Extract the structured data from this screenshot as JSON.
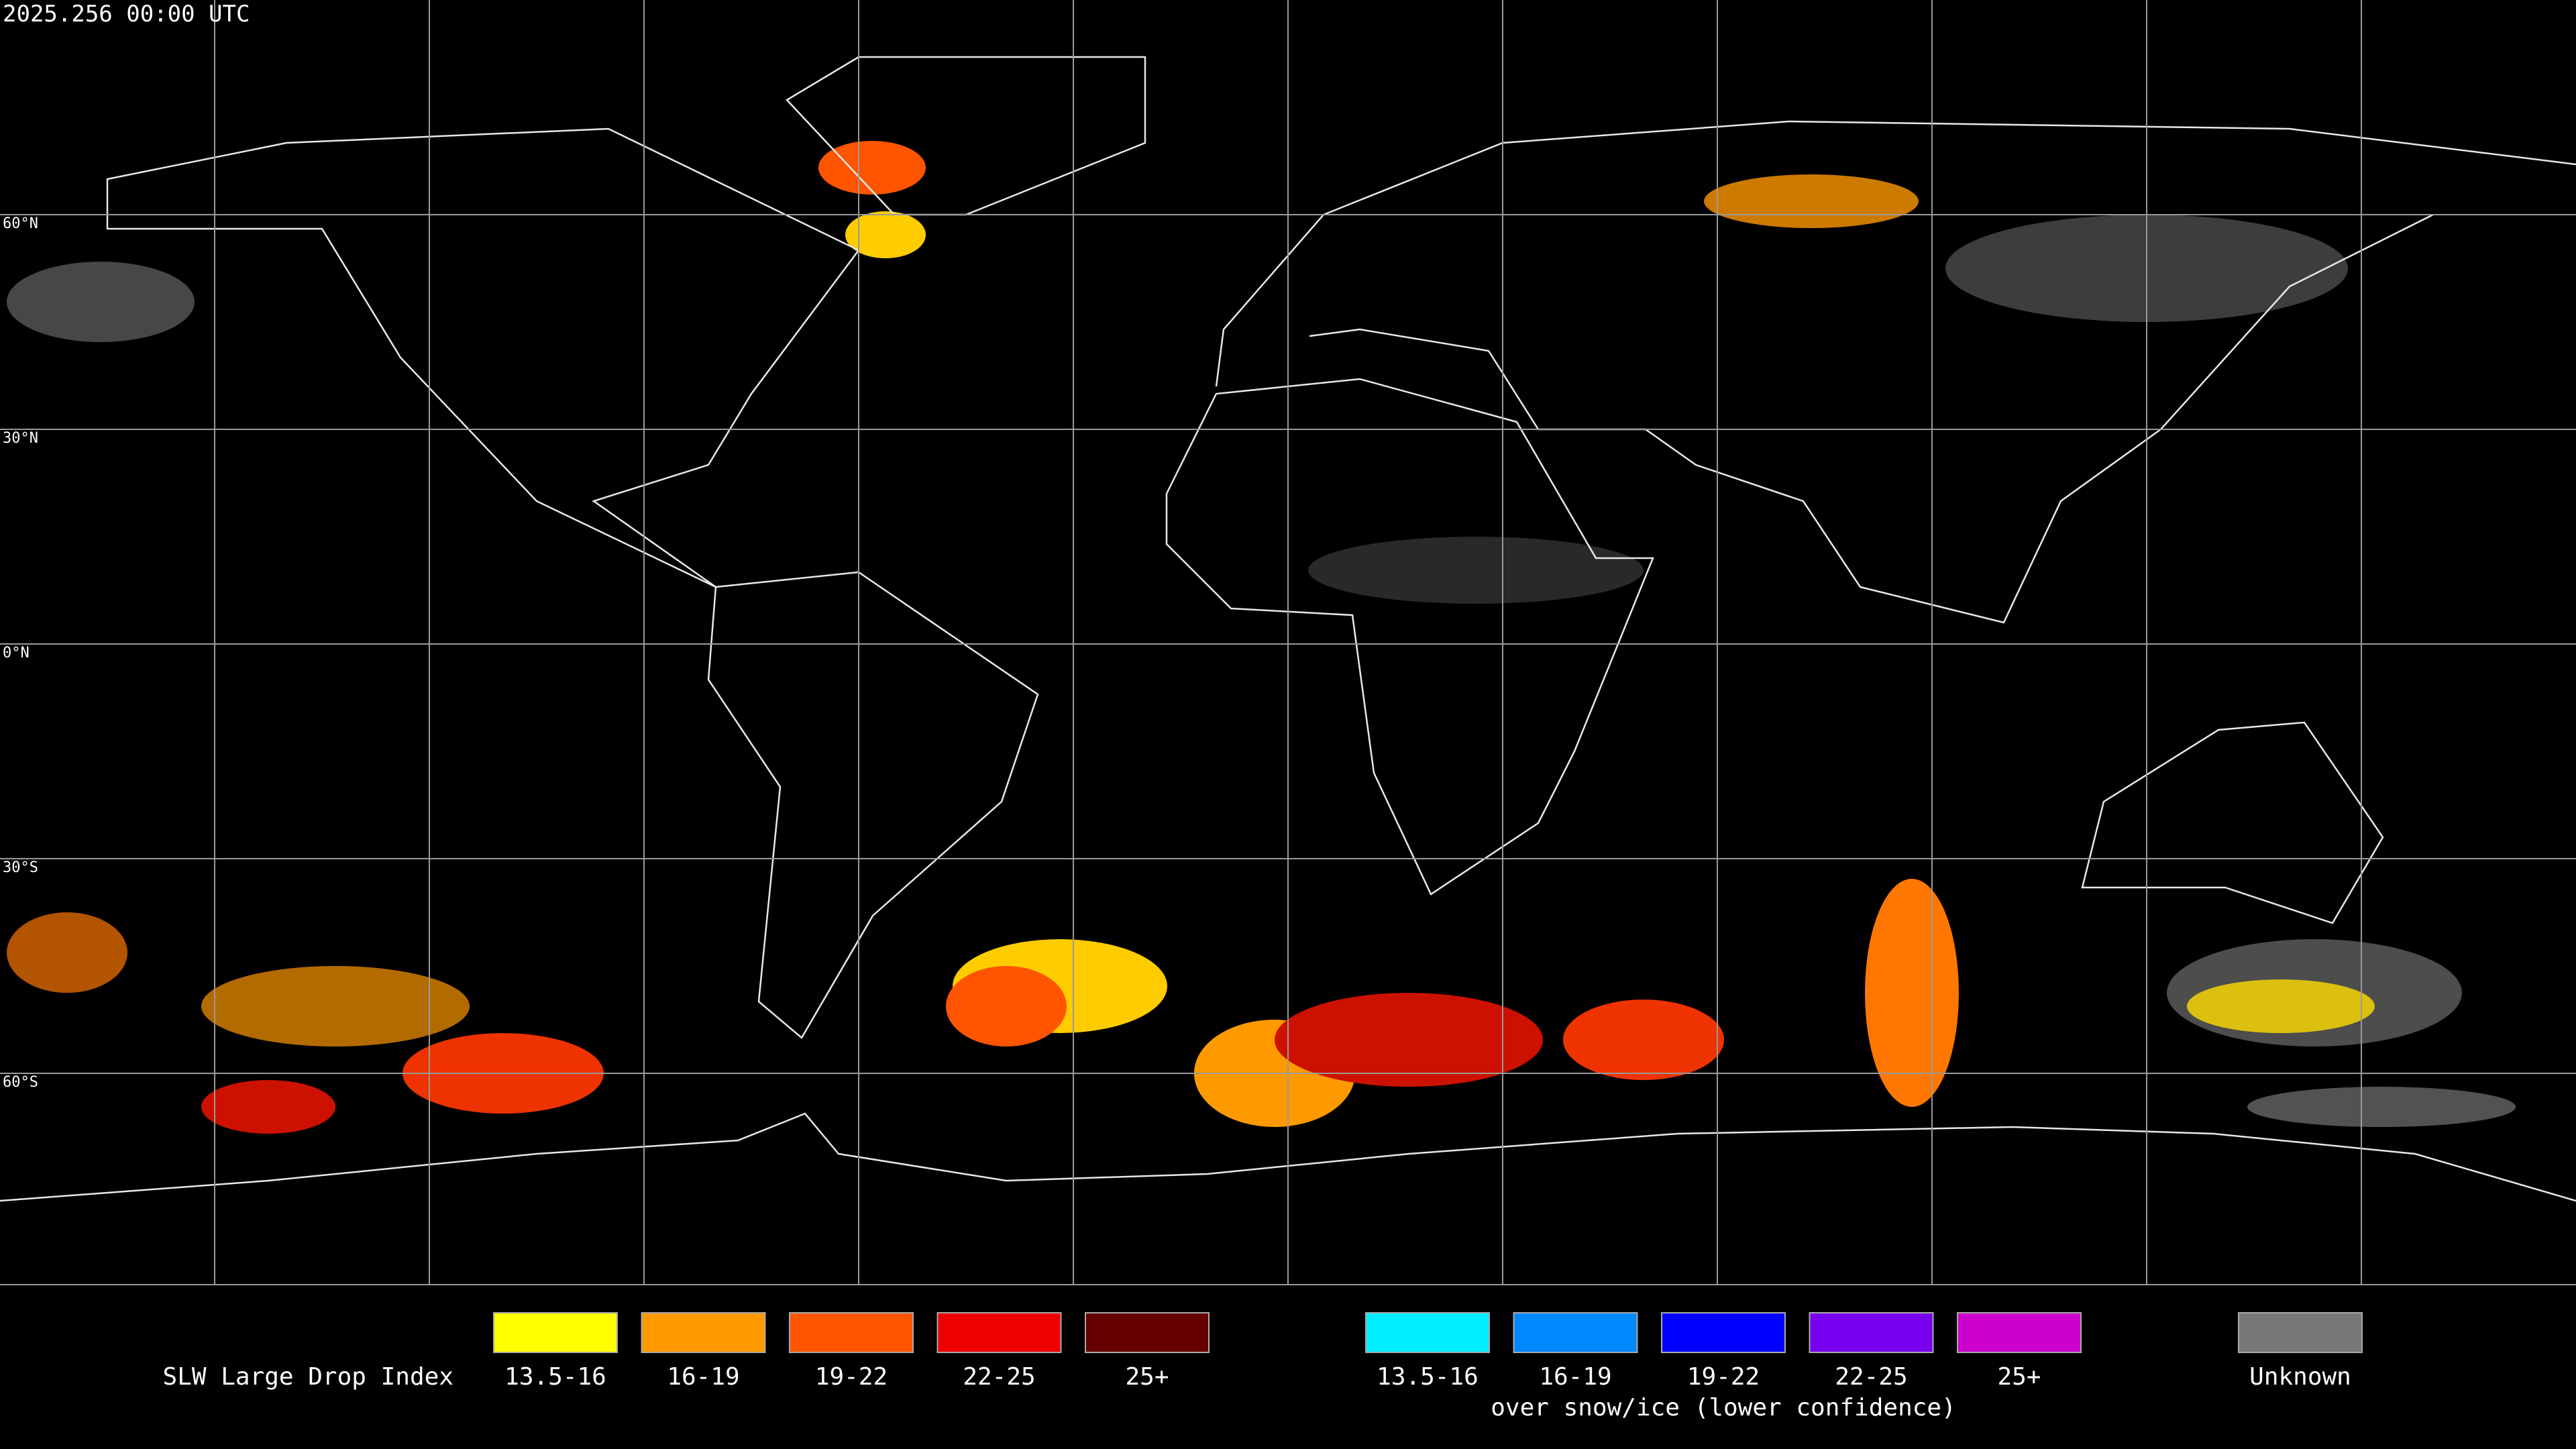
{
  "header": {
    "timestamp": "2025.256 00:00 UTC"
  },
  "map": {
    "lat_labels": [
      "60°N",
      "30°N",
      "0°N",
      "30°S",
      "60°S"
    ]
  },
  "legend": {
    "title": "SLW Large Drop Index",
    "groups": [
      {
        "items": [
          {
            "label": "13.5-16",
            "color": "#ffff00"
          },
          {
            "label": "16-19",
            "color": "#ff9900"
          },
          {
            "label": "19-22",
            "color": "#ff5500"
          },
          {
            "label": "22-25",
            "color": "#ee0000"
          },
          {
            "label": "25+",
            "color": "#660000"
          }
        ]
      },
      {
        "items": [
          {
            "label": "13.5-16",
            "color": "#00eeff"
          },
          {
            "label": "16-19",
            "color": "#0088ff"
          },
          {
            "label": "19-22",
            "color": "#0000ff"
          },
          {
            "label": "22-25",
            "color": "#7700ee"
          },
          {
            "label": "25+",
            "color": "#cc00cc"
          }
        ],
        "note": "over snow/ice (lower confidence)"
      },
      {
        "items": [
          {
            "label": "Unknown",
            "color": "#777777"
          }
        ]
      }
    ]
  }
}
